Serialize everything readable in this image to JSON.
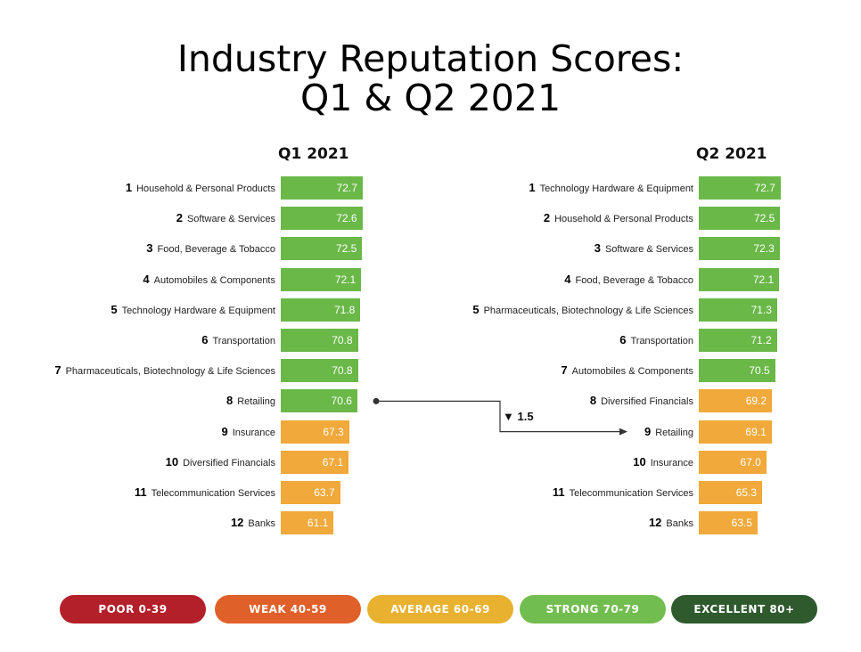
{
  "colors": {
    "strong": "#6ab848",
    "average": "#f0a93a",
    "poor": "#b3202a",
    "weak": "#e0602a",
    "legend_average": "#e8b12f",
    "legend_strong": "#72bd4f",
    "excellent": "#2e5a2e"
  },
  "chart_data": {
    "type": "bar",
    "title": "Industry Reputation Scores:",
    "subtitle": "Q1 & Q2 2021",
    "series": [
      {
        "name": "Q1 2021",
        "rows": [
          {
            "rank": "1",
            "label": "Household & Personal Products",
            "value": 72.7,
            "value_label": "72.7"
          },
          {
            "rank": "2",
            "label": "Software & Services",
            "value": 72.6,
            "value_label": "72.6"
          },
          {
            "rank": "3",
            "label": "Food, Beverage & Tobacco",
            "value": 72.5,
            "value_label": "72.5"
          },
          {
            "rank": "4",
            "label": "Automobiles & Components",
            "value": 72.1,
            "value_label": "72.1"
          },
          {
            "rank": "5",
            "label": "Technology Hardware & Equipment",
            "value": 71.8,
            "value_label": "71.8"
          },
          {
            "rank": "6",
            "label": "Transportation",
            "value": 70.8,
            "value_label": "70.8"
          },
          {
            "rank": "7",
            "label": "Pharmaceuticals, Biotechnology & Life Sciences",
            "value": 70.8,
            "value_label": "70.8"
          },
          {
            "rank": "8",
            "label": "Retailing",
            "value": 70.6,
            "value_label": "70.6"
          },
          {
            "rank": "9",
            "label": "Insurance",
            "value": 67.3,
            "value_label": "67.3"
          },
          {
            "rank": "10",
            "label": "Diversified Financials",
            "value": 67.1,
            "value_label": "67.1"
          },
          {
            "rank": "11",
            "label": "Telecommunication Services",
            "value": 63.7,
            "value_label": "63.7"
          },
          {
            "rank": "12",
            "label": "Banks",
            "value": 61.1,
            "value_label": "61.1"
          }
        ]
      },
      {
        "name": "Q2 2021",
        "rows": [
          {
            "rank": "1",
            "label": "Technology Hardware & Equipment",
            "value": 72.7,
            "value_label": "72.7"
          },
          {
            "rank": "2",
            "label": "Household & Personal Products",
            "value": 72.5,
            "value_label": "72.5"
          },
          {
            "rank": "3",
            "label": "Software & Services",
            "value": 72.3,
            "value_label": "72.3"
          },
          {
            "rank": "4",
            "label": "Food, Beverage & Tobacco",
            "value": 72.1,
            "value_label": "72.1"
          },
          {
            "rank": "5",
            "label": "Pharmaceuticals, Biotechnology & Life Sciences",
            "value": 71.3,
            "value_label": "71.3"
          },
          {
            "rank": "6",
            "label": "Transportation",
            "value": 71.2,
            "value_label": "71.2"
          },
          {
            "rank": "7",
            "label": "Automobiles & Components",
            "value": 70.5,
            "value_label": "70.5"
          },
          {
            "rank": "8",
            "label": "Diversified Financials",
            "value": 69.2,
            "value_label": "69.2"
          },
          {
            "rank": "9",
            "label": "Retailing",
            "value": 69.1,
            "value_label": "69.1"
          },
          {
            "rank": "10",
            "label": "Insurance",
            "value": 67.0,
            "value_label": "67.0"
          },
          {
            "rank": "11",
            "label": "Telecommunication Services",
            "value": 65.3,
            "value_label": "65.3"
          },
          {
            "rank": "12",
            "label": "Banks",
            "value": 63.5,
            "value_label": "63.5"
          }
        ]
      }
    ],
    "annotation": {
      "text": "▼ 1.5",
      "from": {
        "series": "Q1 2021",
        "label": "Retailing"
      },
      "to": {
        "series": "Q2 2021",
        "label": "Retailing"
      }
    },
    "legend": [
      {
        "label": "POOR  0-39",
        "color_key": "poor"
      },
      {
        "label": "WEAK  40-59",
        "color_key": "weak"
      },
      {
        "label": "AVERAGE  60-69",
        "color_key": "legend_average"
      },
      {
        "label": "STRONG  70-79",
        "color_key": "legend_strong"
      },
      {
        "label": "EXCELLENT  80+",
        "color_key": "excellent"
      }
    ]
  }
}
